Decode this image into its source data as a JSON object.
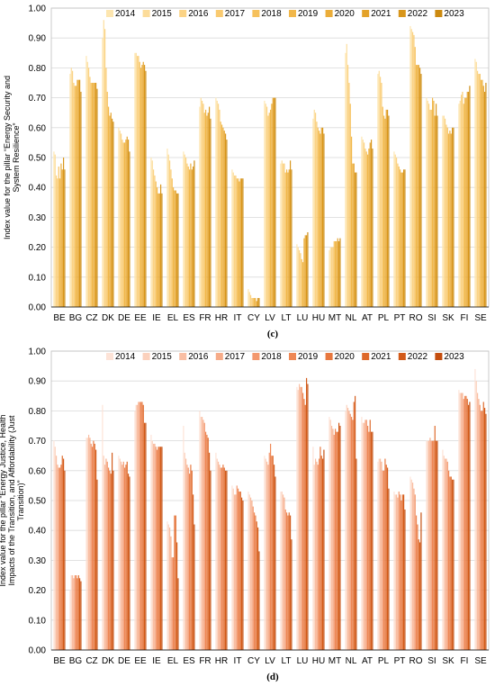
{
  "years": [
    "2014",
    "2015",
    "2016",
    "2017",
    "2018",
    "2019",
    "2020",
    "2021",
    "2022",
    "2023"
  ],
  "countries": [
    "BE",
    "BG",
    "CZ",
    "DK",
    "DE",
    "EE",
    "IE",
    "EL",
    "ES",
    "FR",
    "HR",
    "IT",
    "CY",
    "LV",
    "LT",
    "LU",
    "HU",
    "MT",
    "NL",
    "AT",
    "PL",
    "PT",
    "RO",
    "SI",
    "SK",
    "FI",
    "SE"
  ],
  "chart_data": [
    {
      "type": "bar",
      "caption": "(c)",
      "ylabel": "Index value for the pillar “Energy Security and System Resilience”",
      "ylim": [
        0,
        1.0
      ],
      "yticks": [
        "0.00",
        "0.10",
        "0.20",
        "0.30",
        "0.40",
        "0.50",
        "0.60",
        "0.70",
        "0.80",
        "0.90",
        "1.00"
      ],
      "grid": true,
      "legend": "top",
      "colors": [
        "#fde6b0",
        "#fcdc9a",
        "#fbd385",
        "#f9ca70",
        "#f6c15c",
        "#f1b74a",
        "#ebad39",
        "#e3a229",
        "#d8961b",
        "#cc8a10"
      ],
      "series": [
        {
          "name": "2014",
          "values": [
            0.52,
            0.78,
            0.84,
            0.9,
            0.6,
            0.85,
            0.5,
            0.53,
            0.52,
            0.67,
            0.7,
            0.46,
            0.06,
            0.69,
            0.48,
            0.21,
            0.63,
            0.19,
            0.85,
            0.57,
            0.78,
            0.52,
            0.94,
            0.7,
            0.64,
            0.68,
            0.83
          ]
        },
        {
          "name": "2015",
          "values": [
            0.51,
            0.8,
            0.82,
            0.96,
            0.59,
            0.85,
            0.49,
            0.51,
            0.51,
            0.7,
            0.69,
            0.45,
            0.05,
            0.68,
            0.49,
            0.2,
            0.66,
            0.2,
            0.88,
            0.56,
            0.79,
            0.51,
            0.93,
            0.69,
            0.64,
            0.69,
            0.82
          ]
        },
        {
          "name": "2016",
          "values": [
            0.44,
            0.79,
            0.8,
            0.93,
            0.58,
            0.84,
            0.46,
            0.49,
            0.5,
            0.69,
            0.68,
            0.44,
            0.04,
            0.67,
            0.48,
            0.19,
            0.65,
            0.2,
            0.81,
            0.55,
            0.77,
            0.5,
            0.92,
            0.68,
            0.63,
            0.71,
            0.79
          ]
        },
        {
          "name": "2017",
          "values": [
            0.43,
            0.75,
            0.77,
            0.8,
            0.56,
            0.84,
            0.44,
            0.46,
            0.48,
            0.68,
            0.66,
            0.44,
            0.03,
            0.64,
            0.48,
            0.18,
            0.62,
            0.2,
            0.75,
            0.53,
            0.75,
            0.48,
            0.91,
            0.66,
            0.61,
            0.72,
            0.78
          ]
        },
        {
          "name": "2018",
          "values": [
            0.47,
            0.74,
            0.75,
            0.72,
            0.55,
            0.82,
            0.42,
            0.43,
            0.47,
            0.65,
            0.62,
            0.43,
            0.03,
            0.65,
            0.45,
            0.16,
            0.6,
            0.22,
            0.68,
            0.52,
            0.67,
            0.47,
            0.87,
            0.66,
            0.6,
            0.68,
            0.78
          ]
        },
        {
          "name": "2019",
          "values": [
            0.43,
            0.74,
            0.75,
            0.67,
            0.55,
            0.8,
            0.4,
            0.4,
            0.46,
            0.66,
            0.61,
            0.43,
            0.03,
            0.66,
            0.46,
            0.15,
            0.59,
            0.22,
            0.57,
            0.51,
            0.64,
            0.46,
            0.81,
            0.7,
            0.58,
            0.7,
            0.76
          ]
        },
        {
          "name": "2020",
          "values": [
            0.48,
            0.76,
            0.75,
            0.64,
            0.56,
            0.81,
            0.38,
            0.39,
            0.48,
            0.64,
            0.6,
            0.42,
            0.03,
            0.68,
            0.45,
            0.23,
            0.58,
            0.22,
            0.48,
            0.53,
            0.63,
            0.45,
            0.81,
            0.69,
            0.59,
            0.7,
            0.76
          ]
        },
        {
          "name": "2021",
          "values": [
            0.46,
            0.76,
            0.75,
            0.65,
            0.57,
            0.82,
            0.38,
            0.39,
            0.46,
            0.65,
            0.59,
            0.43,
            0.02,
            0.7,
            0.46,
            0.24,
            0.6,
            0.23,
            0.48,
            0.55,
            0.66,
            0.45,
            0.81,
            0.64,
            0.58,
            0.72,
            0.74
          ]
        },
        {
          "name": "2022",
          "values": [
            0.5,
            0.76,
            0.75,
            0.63,
            0.56,
            0.81,
            0.41,
            0.38,
            0.47,
            0.67,
            0.58,
            0.43,
            0.03,
            0.7,
            0.49,
            0.24,
            0.6,
            0.22,
            0.45,
            0.56,
            0.66,
            0.46,
            0.8,
            0.68,
            0.6,
            0.72,
            0.72
          ]
        },
        {
          "name": "2023",
          "values": [
            0.46,
            0.72,
            0.73,
            0.62,
            0.52,
            0.79,
            0.38,
            0.38,
            0.49,
            0.63,
            0.56,
            0.43,
            0.03,
            0.7,
            0.46,
            0.25,
            0.58,
            0.23,
            0.45,
            0.53,
            0.64,
            0.46,
            0.78,
            0.64,
            0.6,
            0.74,
            0.75
          ]
        }
      ]
    },
    {
      "type": "bar",
      "caption": "(d)",
      "ylabel": "Index value for the pillar “Energy Justice, Health Impacts of the Transition, and Affordability (Just Transition)”",
      "ylim": [
        0,
        1.0
      ],
      "yticks": [
        "0.00",
        "0.10",
        "0.20",
        "0.30",
        "0.40",
        "0.50",
        "0.60",
        "0.70",
        "0.80",
        "0.90",
        "1.00"
      ],
      "grid": true,
      "legend": "top",
      "colors": [
        "#fde3d7",
        "#fbd1bd",
        "#f9bea3",
        "#f6ab88",
        "#f3986e",
        "#ee8754",
        "#e7773e",
        "#de6829",
        "#d25a19",
        "#c44d0d"
      ],
      "series": [
        {
          "name": "2014",
          "values": [
            0.7,
            0.2,
            0.71,
            0.82,
            0.65,
            0.8,
            0.72,
            0.43,
            0.75,
            0.8,
            0.66,
            0.55,
            0.53,
            0.65,
            0.53,
            0.88,
            0.68,
            0.78,
            0.8,
            0.78,
            0.63,
            0.53,
            0.58,
            0.7,
            0.67,
            0.87,
            0.94
          ]
        },
        {
          "name": "2015",
          "values": [
            0.68,
            0.25,
            0.71,
            0.65,
            0.64,
            0.82,
            0.7,
            0.42,
            0.66,
            0.78,
            0.64,
            0.54,
            0.52,
            0.64,
            0.53,
            0.87,
            0.62,
            0.77,
            0.82,
            0.76,
            0.64,
            0.52,
            0.57,
            0.7,
            0.65,
            0.86,
            0.9
          ]
        },
        {
          "name": "2016",
          "values": [
            0.65,
            0.25,
            0.72,
            0.62,
            0.63,
            0.82,
            0.69,
            0.41,
            0.64,
            0.78,
            0.63,
            0.52,
            0.51,
            0.63,
            0.52,
            0.89,
            0.64,
            0.75,
            0.81,
            0.76,
            0.64,
            0.52,
            0.56,
            0.7,
            0.64,
            0.86,
            0.86
          ]
        },
        {
          "name": "2017",
          "values": [
            0.62,
            0.24,
            0.71,
            0.64,
            0.62,
            0.83,
            0.69,
            0.38,
            0.62,
            0.77,
            0.62,
            0.52,
            0.5,
            0.62,
            0.51,
            0.88,
            0.63,
            0.74,
            0.8,
            0.77,
            0.63,
            0.51,
            0.54,
            0.71,
            0.64,
            0.86,
            0.84
          ]
        },
        {
          "name": "2018",
          "values": [
            0.61,
            0.25,
            0.69,
            0.63,
            0.63,
            0.83,
            0.68,
            0.31,
            0.61,
            0.76,
            0.61,
            0.55,
            0.48,
            0.66,
            0.47,
            0.88,
            0.62,
            0.72,
            0.79,
            0.77,
            0.6,
            0.53,
            0.52,
            0.7,
            0.63,
            0.84,
            0.82
          ]
        },
        {
          "name": "2019",
          "values": [
            0.61,
            0.25,
            0.68,
            0.61,
            0.61,
            0.83,
            0.67,
            0.31,
            0.59,
            0.73,
            0.61,
            0.54,
            0.46,
            0.69,
            0.46,
            0.86,
            0.64,
            0.74,
            0.78,
            0.75,
            0.6,
            0.52,
            0.45,
            0.7,
            0.6,
            0.85,
            0.8
          ]
        },
        {
          "name": "2020",
          "values": [
            0.62,
            0.24,
            0.7,
            0.6,
            0.62,
            0.83,
            0.68,
            0.45,
            0.62,
            0.72,
            0.62,
            0.53,
            0.45,
            0.65,
            0.45,
            0.84,
            0.68,
            0.73,
            0.77,
            0.73,
            0.64,
            0.5,
            0.42,
            0.7,
            0.58,
            0.85,
            0.8
          ]
        },
        {
          "name": "2021",
          "values": [
            0.65,
            0.25,
            0.69,
            0.59,
            0.63,
            0.82,
            0.68,
            0.45,
            0.6,
            0.71,
            0.61,
            0.53,
            0.43,
            0.65,
            0.46,
            0.82,
            0.65,
            0.73,
            0.83,
            0.77,
            0.62,
            0.52,
            0.37,
            0.75,
            0.58,
            0.84,
            0.83
          ]
        },
        {
          "name": "2022",
          "values": [
            0.64,
            0.24,
            0.67,
            0.66,
            0.59,
            0.76,
            0.68,
            0.36,
            0.52,
            0.66,
            0.6,
            0.51,
            0.41,
            0.62,
            0.45,
            0.91,
            0.64,
            0.76,
            0.85,
            0.73,
            0.61,
            0.52,
            0.36,
            0.7,
            0.57,
            0.82,
            0.81
          ]
        },
        {
          "name": "2023",
          "values": [
            0.6,
            0.23,
            0.57,
            0.6,
            0.58,
            0.76,
            0.68,
            0.24,
            0.42,
            0.6,
            0.6,
            0.5,
            0.33,
            0.58,
            0.37,
            0.89,
            0.67,
            0.75,
            0.64,
            0.73,
            0.54,
            0.47,
            0.46,
            0.7,
            0.57,
            0.83,
            0.79
          ]
        }
      ]
    }
  ]
}
